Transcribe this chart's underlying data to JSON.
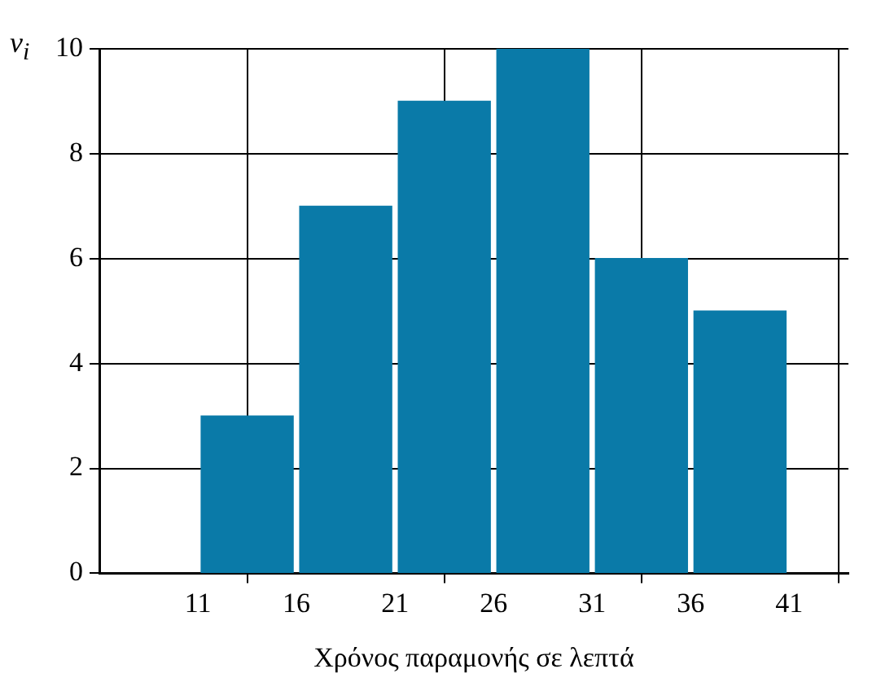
{
  "chart_data": {
    "type": "histogram",
    "xlabel": "Χρόνος παραμονής σε λεπτά",
    "ylabel": "v$_{i}$",
    "bins": [
      11,
      16,
      21,
      26,
      31,
      36,
      41
    ],
    "values": [
      3,
      7,
      9,
      10,
      6,
      5
    ],
    "color": "#0a7aa8",
    "xlim": [
      6,
      44
    ],
    "xticks": [
      11,
      {
        "value": 13.5,
        "label": null
      },
      16,
      21,
      {
        "value": 23.5,
        "label": null
      },
      26,
      31,
      {
        "value": 33.5,
        "label": null
      },
      36,
      41,
      {
        "value": 43.5,
        "label": null
      }
    ],
    "ylim": [
      0,
      10
    ],
    "yticks": [
      0,
      2,
      4,
      6,
      8,
      10
    ],
    "grid": true
  }
}
